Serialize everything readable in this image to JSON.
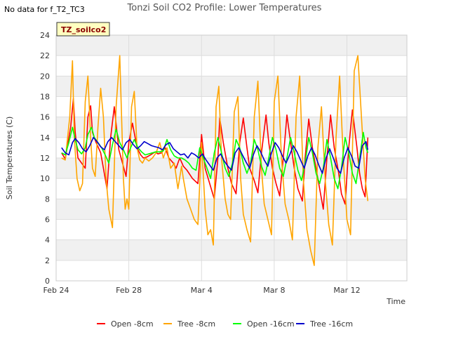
{
  "corner_note": "No data for f_T2_TC3",
  "tag": "TZ_soilco2",
  "chart_data": {
    "type": "line",
    "title": "Tonzi Soil CO2 Profile: Lower Temperatures",
    "xlabel": "Time",
    "ylabel": "Soil Temperatures (C)",
    "ylim": [
      0,
      24
    ],
    "yticks": [
      0,
      2,
      4,
      6,
      8,
      10,
      12,
      14,
      16,
      18,
      20,
      22,
      24
    ],
    "xlim": [
      0,
      19.3
    ],
    "xtick_labels": [
      "Feb 24",
      "Feb 28",
      "Mar 4",
      "Mar 8",
      "Mar 12"
    ],
    "xtick_values": [
      0,
      4,
      8,
      12,
      16
    ],
    "grid": true,
    "legend_position": "bottom",
    "series": [
      {
        "name": "Open -8cm",
        "color": "#ff0000",
        "x": [
          0.3,
          0.5,
          0.8,
          0.95,
          1.05,
          1.2,
          1.4,
          1.6,
          1.75,
          1.9,
          2.0,
          2.2,
          2.45,
          2.6,
          2.8,
          3.0,
          3.2,
          3.45,
          3.65,
          3.85,
          4.0,
          4.2,
          4.45,
          4.65,
          4.8,
          5.0,
          5.2,
          5.45,
          5.6,
          5.8,
          6.0,
          6.2,
          6.45,
          6.6,
          6.8,
          7.0,
          7.2,
          7.5,
          7.8,
          8.0,
          8.2,
          8.45,
          8.7,
          8.9,
          9.0,
          9.2,
          9.45,
          9.65,
          9.9,
          10.1,
          10.3,
          10.5,
          10.65,
          10.9,
          11.1,
          11.3,
          11.55,
          11.7,
          11.9,
          12.1,
          12.3,
          12.55,
          12.7,
          12.9,
          13.1,
          13.3,
          13.55,
          13.7,
          13.9,
          14.1,
          14.3,
          14.55,
          14.7,
          14.9,
          15.1,
          15.3,
          15.55,
          15.7,
          15.9,
          16.1,
          16.3,
          16.55,
          16.7,
          16.85,
          17.0,
          17.15
        ],
        "y": [
          12.5,
          11.9,
          15.0,
          17.8,
          14.5,
          12.0,
          11.5,
          11.0,
          16.0,
          17.1,
          14.5,
          13.5,
          12.5,
          11.0,
          9.0,
          14.0,
          17.0,
          12.8,
          11.5,
          10.2,
          13.5,
          15.4,
          13.0,
          12.3,
          12.0,
          12.1,
          12.3,
          12.6,
          12.4,
          12.5,
          13.0,
          12.0,
          11.5,
          11.0,
          12.0,
          11.2,
          10.8,
          10.0,
          9.5,
          14.3,
          11.0,
          9.5,
          8.0,
          12.0,
          15.9,
          13.5,
          11.0,
          9.5,
          8.5,
          13.5,
          15.9,
          13.0,
          11.0,
          9.8,
          8.6,
          12.5,
          16.2,
          13.5,
          11.0,
          9.5,
          8.3,
          13.0,
          16.2,
          13.5,
          11.0,
          9.0,
          7.8,
          12.0,
          15.8,
          13.0,
          11.0,
          8.5,
          7.0,
          12.0,
          16.2,
          13.0,
          10.5,
          8.5,
          7.5,
          13.0,
          16.7,
          13.0,
          10.5,
          9.0,
          8.2,
          14.0
        ]
      },
      {
        "name": "Tree -8cm",
        "color": "#ffa500",
        "x": [
          0.3,
          0.5,
          0.75,
          0.9,
          1.0,
          1.15,
          1.3,
          1.45,
          1.6,
          1.75,
          1.9,
          2.0,
          2.15,
          2.3,
          2.45,
          2.6,
          2.75,
          2.9,
          3.1,
          3.3,
          3.5,
          3.7,
          3.8,
          3.9,
          4.0,
          4.15,
          4.3,
          4.45,
          4.6,
          4.75,
          4.9,
          5.1,
          5.3,
          5.5,
          5.7,
          5.9,
          6.1,
          6.3,
          6.5,
          6.7,
          6.9,
          7.0,
          7.2,
          7.4,
          7.6,
          7.8,
          8.0,
          8.2,
          8.35,
          8.5,
          8.65,
          8.8,
          8.95,
          9.1,
          9.3,
          9.45,
          9.6,
          9.8,
          10.0,
          10.15,
          10.3,
          10.5,
          10.7,
          10.9,
          11.1,
          11.3,
          11.45,
          11.65,
          11.85,
          12.0,
          12.2,
          12.4,
          12.6,
          12.8,
          13.0,
          13.2,
          13.4,
          13.6,
          13.8,
          14.0,
          14.2,
          14.4,
          14.6,
          14.8,
          15.0,
          15.2,
          15.4,
          15.6,
          15.8,
          16.0,
          16.2,
          16.4,
          16.6,
          16.8,
          17.0,
          17.15
        ],
        "y": [
          12.0,
          11.8,
          16.0,
          21.5,
          14.0,
          10.0,
          8.8,
          9.5,
          17.5,
          20.0,
          14.0,
          11.0,
          10.2,
          15.0,
          18.8,
          16.0,
          10.0,
          7.0,
          5.2,
          17.0,
          22.0,
          10.0,
          7.0,
          8.0,
          7.0,
          17.0,
          18.5,
          13.0,
          11.8,
          11.5,
          12.0,
          11.7,
          12.0,
          12.5,
          13.5,
          12.0,
          13.0,
          11.0,
          11.5,
          9.0,
          11.2,
          10.0,
          8.0,
          7.0,
          6.0,
          5.5,
          13.5,
          7.0,
          4.5,
          5.0,
          3.5,
          17.0,
          19.0,
          12.0,
          8.0,
          6.5,
          6.0,
          16.5,
          18.0,
          10.0,
          6.5,
          5.0,
          3.8,
          16.0,
          19.5,
          11.0,
          7.5,
          6.0,
          4.5,
          17.5,
          20.0,
          12.0,
          7.5,
          6.0,
          4.0,
          16.0,
          20.0,
          10.0,
          5.0,
          3.0,
          1.5,
          13.0,
          17.0,
          10.0,
          5.5,
          3.5,
          14.0,
          20.0,
          12.0,
          6.0,
          4.5,
          20.5,
          22.0,
          16.0,
          10.0,
          7.8
        ]
      },
      {
        "name": "Open -16cm",
        "color": "#00ff00",
        "x": [
          0.3,
          0.5,
          0.7,
          0.9,
          1.05,
          1.2,
          1.4,
          1.6,
          1.75,
          1.95,
          2.1,
          2.3,
          2.5,
          2.7,
          2.9,
          3.1,
          3.3,
          3.5,
          3.7,
          3.9,
          4.1,
          4.3,
          4.5,
          4.7,
          4.9,
          5.1,
          5.3,
          5.5,
          5.7,
          5.9,
          6.1,
          6.3,
          6.5,
          6.7,
          6.9,
          7.1,
          7.3,
          7.5,
          7.7,
          7.9,
          8.1,
          8.3,
          8.5,
          8.7,
          8.9,
          9.1,
          9.3,
          9.5,
          9.7,
          9.9,
          10.1,
          10.3,
          10.5,
          10.7,
          10.9,
          11.1,
          11.3,
          11.5,
          11.7,
          11.9,
          12.1,
          12.3,
          12.5,
          12.7,
          12.9,
          13.1,
          13.3,
          13.5,
          13.7,
          13.9,
          14.1,
          14.3,
          14.5,
          14.7,
          14.9,
          15.1,
          15.3,
          15.5,
          15.7,
          15.9,
          16.1,
          16.3,
          16.5,
          16.7,
          16.9,
          17.05,
          17.15
        ],
        "y": [
          12.5,
          12.3,
          13.5,
          15.0,
          13.8,
          12.8,
          12.4,
          13.0,
          14.3,
          15.0,
          14.0,
          13.5,
          13.0,
          12.3,
          11.5,
          13.3,
          14.8,
          13.5,
          12.8,
          12.0,
          13.0,
          13.8,
          13.0,
          12.6,
          12.3,
          12.4,
          12.5,
          12.6,
          12.6,
          12.7,
          13.8,
          12.8,
          12.2,
          12.0,
          12.0,
          11.8,
          11.5,
          11.0,
          10.8,
          13.0,
          12.0,
          11.0,
          10.0,
          12.5,
          14.0,
          12.5,
          11.0,
          10.2,
          11.5,
          13.8,
          13.0,
          11.5,
          10.5,
          11.5,
          13.8,
          12.8,
          11.2,
          10.3,
          12.0,
          14.0,
          12.8,
          11.0,
          10.2,
          12.0,
          14.0,
          12.5,
          10.8,
          9.8,
          11.5,
          14.0,
          12.5,
          10.5,
          9.5,
          11.0,
          13.8,
          12.0,
          10.0,
          9.0,
          11.0,
          14.0,
          12.5,
          10.5,
          9.5,
          12.0,
          14.5,
          13.0,
          12.5
        ]
      },
      {
        "name": "Tree -16cm",
        "color": "#0000cc",
        "x": [
          0.3,
          0.5,
          0.7,
          0.9,
          1.05,
          1.25,
          1.45,
          1.65,
          1.85,
          2.05,
          2.25,
          2.45,
          2.65,
          2.85,
          3.05,
          3.25,
          3.45,
          3.65,
          3.85,
          4.05,
          4.25,
          4.45,
          4.65,
          4.85,
          5.05,
          5.25,
          5.45,
          5.65,
          5.85,
          6.05,
          6.25,
          6.45,
          6.65,
          6.85,
          7.05,
          7.25,
          7.45,
          7.65,
          7.85,
          8.05,
          8.25,
          8.45,
          8.65,
          8.85,
          9.05,
          9.25,
          9.45,
          9.65,
          9.85,
          10.05,
          10.25,
          10.45,
          10.65,
          10.85,
          11.05,
          11.25,
          11.45,
          11.65,
          11.85,
          12.05,
          12.25,
          12.45,
          12.65,
          12.85,
          13.05,
          13.25,
          13.45,
          13.65,
          13.85,
          14.05,
          14.25,
          14.45,
          14.65,
          14.85,
          15.05,
          15.25,
          15.45,
          15.65,
          15.85,
          16.05,
          16.25,
          16.45,
          16.65,
          16.85,
          17.05,
          17.15
        ],
        "y": [
          13.0,
          12.5,
          12.3,
          13.5,
          13.9,
          13.5,
          12.9,
          12.6,
          13.2,
          14.0,
          13.6,
          13.1,
          12.8,
          13.6,
          14.0,
          13.6,
          13.2,
          12.8,
          13.5,
          13.8,
          13.3,
          12.9,
          13.2,
          13.6,
          13.4,
          13.2,
          13.1,
          13.0,
          12.8,
          13.3,
          13.5,
          12.9,
          12.6,
          12.3,
          12.4,
          12.0,
          12.5,
          12.3,
          12.0,
          12.4,
          11.8,
          11.3,
          10.8,
          12.0,
          12.4,
          11.7,
          11.2,
          10.8,
          12.5,
          13.0,
          12.3,
          11.6,
          11.0,
          12.3,
          13.2,
          12.6,
          11.8,
          11.2,
          12.5,
          13.5,
          13.0,
          12.2,
          11.5,
          12.3,
          13.2,
          12.6,
          11.8,
          11.0,
          12.2,
          13.0,
          12.3,
          11.3,
          10.5,
          12.0,
          12.9,
          12.0,
          11.0,
          10.5,
          12.0,
          13.0,
          12.2,
          11.2,
          11.0,
          13.2,
          13.6,
          12.8
        ]
      }
    ]
  }
}
